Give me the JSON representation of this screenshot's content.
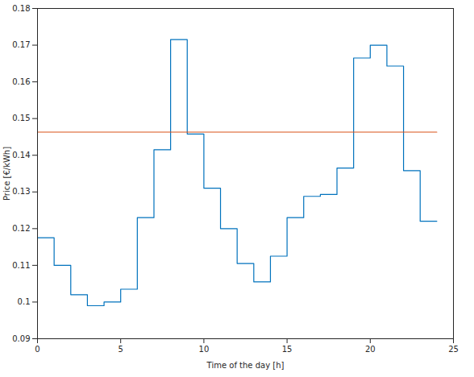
{
  "chart_data": {
    "type": "stairs",
    "x_label": "Time of the day [h]",
    "y_label": "Price [€/kWh]",
    "x": [
      0,
      1,
      2,
      3,
      4,
      5,
      6,
      7,
      8,
      9,
      10,
      11,
      12,
      13,
      14,
      15,
      16,
      17,
      18,
      19,
      20,
      21,
      22,
      23
    ],
    "series": [
      {
        "color": "#0072bd",
        "type": "stairs",
        "values": [
          0.1175,
          0.11,
          0.102,
          0.099,
          0.1,
          0.1035,
          0.123,
          0.1415,
          0.1715,
          0.1458,
          0.131,
          0.12,
          0.1105,
          0.1055,
          0.1125,
          0.123,
          0.1288,
          0.1293,
          0.1365,
          0.1665,
          0.17,
          0.1643,
          0.1358,
          0.122
        ]
      },
      {
        "color": "#d95319",
        "type": "stairs",
        "values": [
          0.1463,
          0.1463,
          0.1463,
          0.1463,
          0.1463,
          0.1463,
          0.1463,
          0.1463,
          0.1463,
          0.1463,
          0.1463,
          0.1463,
          0.1463,
          0.1463,
          0.1463,
          0.1463,
          0.1463,
          0.1463,
          0.1463,
          0.1463,
          0.1463,
          0.1463,
          0.1463,
          0.1463
        ]
      }
    ],
    "xlim": [
      0,
      25
    ],
    "xticks": [
      0,
      5,
      10,
      15,
      20,
      25
    ],
    "ylim": [
      0.09,
      0.18
    ],
    "yticks": [
      0.09,
      0.1,
      0.11,
      0.12,
      0.13,
      0.14,
      0.15,
      0.16,
      0.17,
      0.18
    ],
    "grid": false
  }
}
